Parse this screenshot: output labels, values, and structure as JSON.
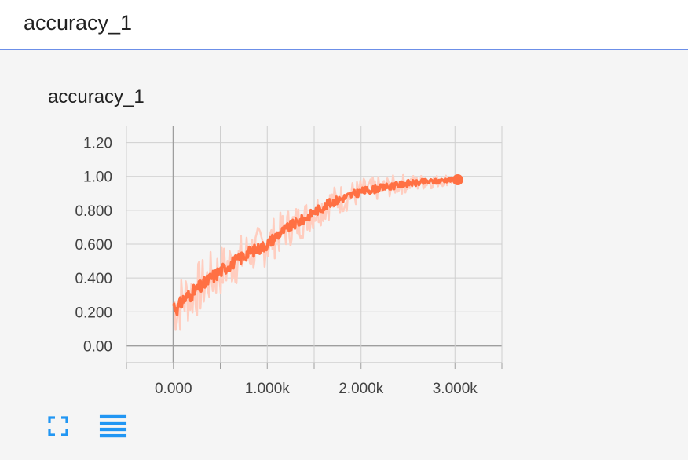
{
  "header": {
    "title": "accuracy_1"
  },
  "card": {
    "title": "accuracy_1"
  },
  "chart_data": {
    "type": "line",
    "title": "accuracy_1",
    "xlabel": "",
    "ylabel": "",
    "xlim": [
      -500,
      3500
    ],
    "ylim": [
      -0.1,
      1.3
    ],
    "x_ticks": [
      0,
      1000,
      2000,
      3000
    ],
    "x_tick_labels": [
      "0.000",
      "1.000k",
      "2.000k",
      "3.000k"
    ],
    "y_ticks": [
      0,
      0.2,
      0.4,
      0.6,
      0.8,
      1.0,
      1.2
    ],
    "y_tick_labels": [
      "0.00",
      "0.200",
      "0.400",
      "0.600",
      "0.800",
      "1.00",
      "1.20"
    ],
    "grid": true,
    "color": "#ff7043",
    "raw_color": "#ffcdbf",
    "series": [
      {
        "x": [
          0,
          50,
          100,
          150,
          200,
          250,
          300,
          400,
          500,
          600,
          700,
          800,
          900,
          1000,
          1100,
          1200,
          1300,
          1400,
          1500,
          1600,
          1700,
          1800,
          1900,
          2000,
          2100,
          2200,
          2300,
          2400,
          2500,
          2600,
          2700,
          2800,
          2900,
          3000,
          3030
        ],
        "y": [
          0.24,
          0.22,
          0.27,
          0.29,
          0.31,
          0.33,
          0.35,
          0.4,
          0.44,
          0.48,
          0.51,
          0.55,
          0.57,
          0.6,
          0.65,
          0.69,
          0.72,
          0.75,
          0.79,
          0.82,
          0.85,
          0.87,
          0.89,
          0.91,
          0.92,
          0.93,
          0.94,
          0.95,
          0.96,
          0.96,
          0.97,
          0.97,
          0.98,
          0.98,
          0.98
        ]
      }
    ],
    "end_marker": {
      "x": 3030,
      "y": 0.98
    }
  },
  "toolbar": {
    "expand_icon": "fullscreen-icon",
    "menu_icon": "menu-lines-icon",
    "accent": "#2196f3"
  }
}
